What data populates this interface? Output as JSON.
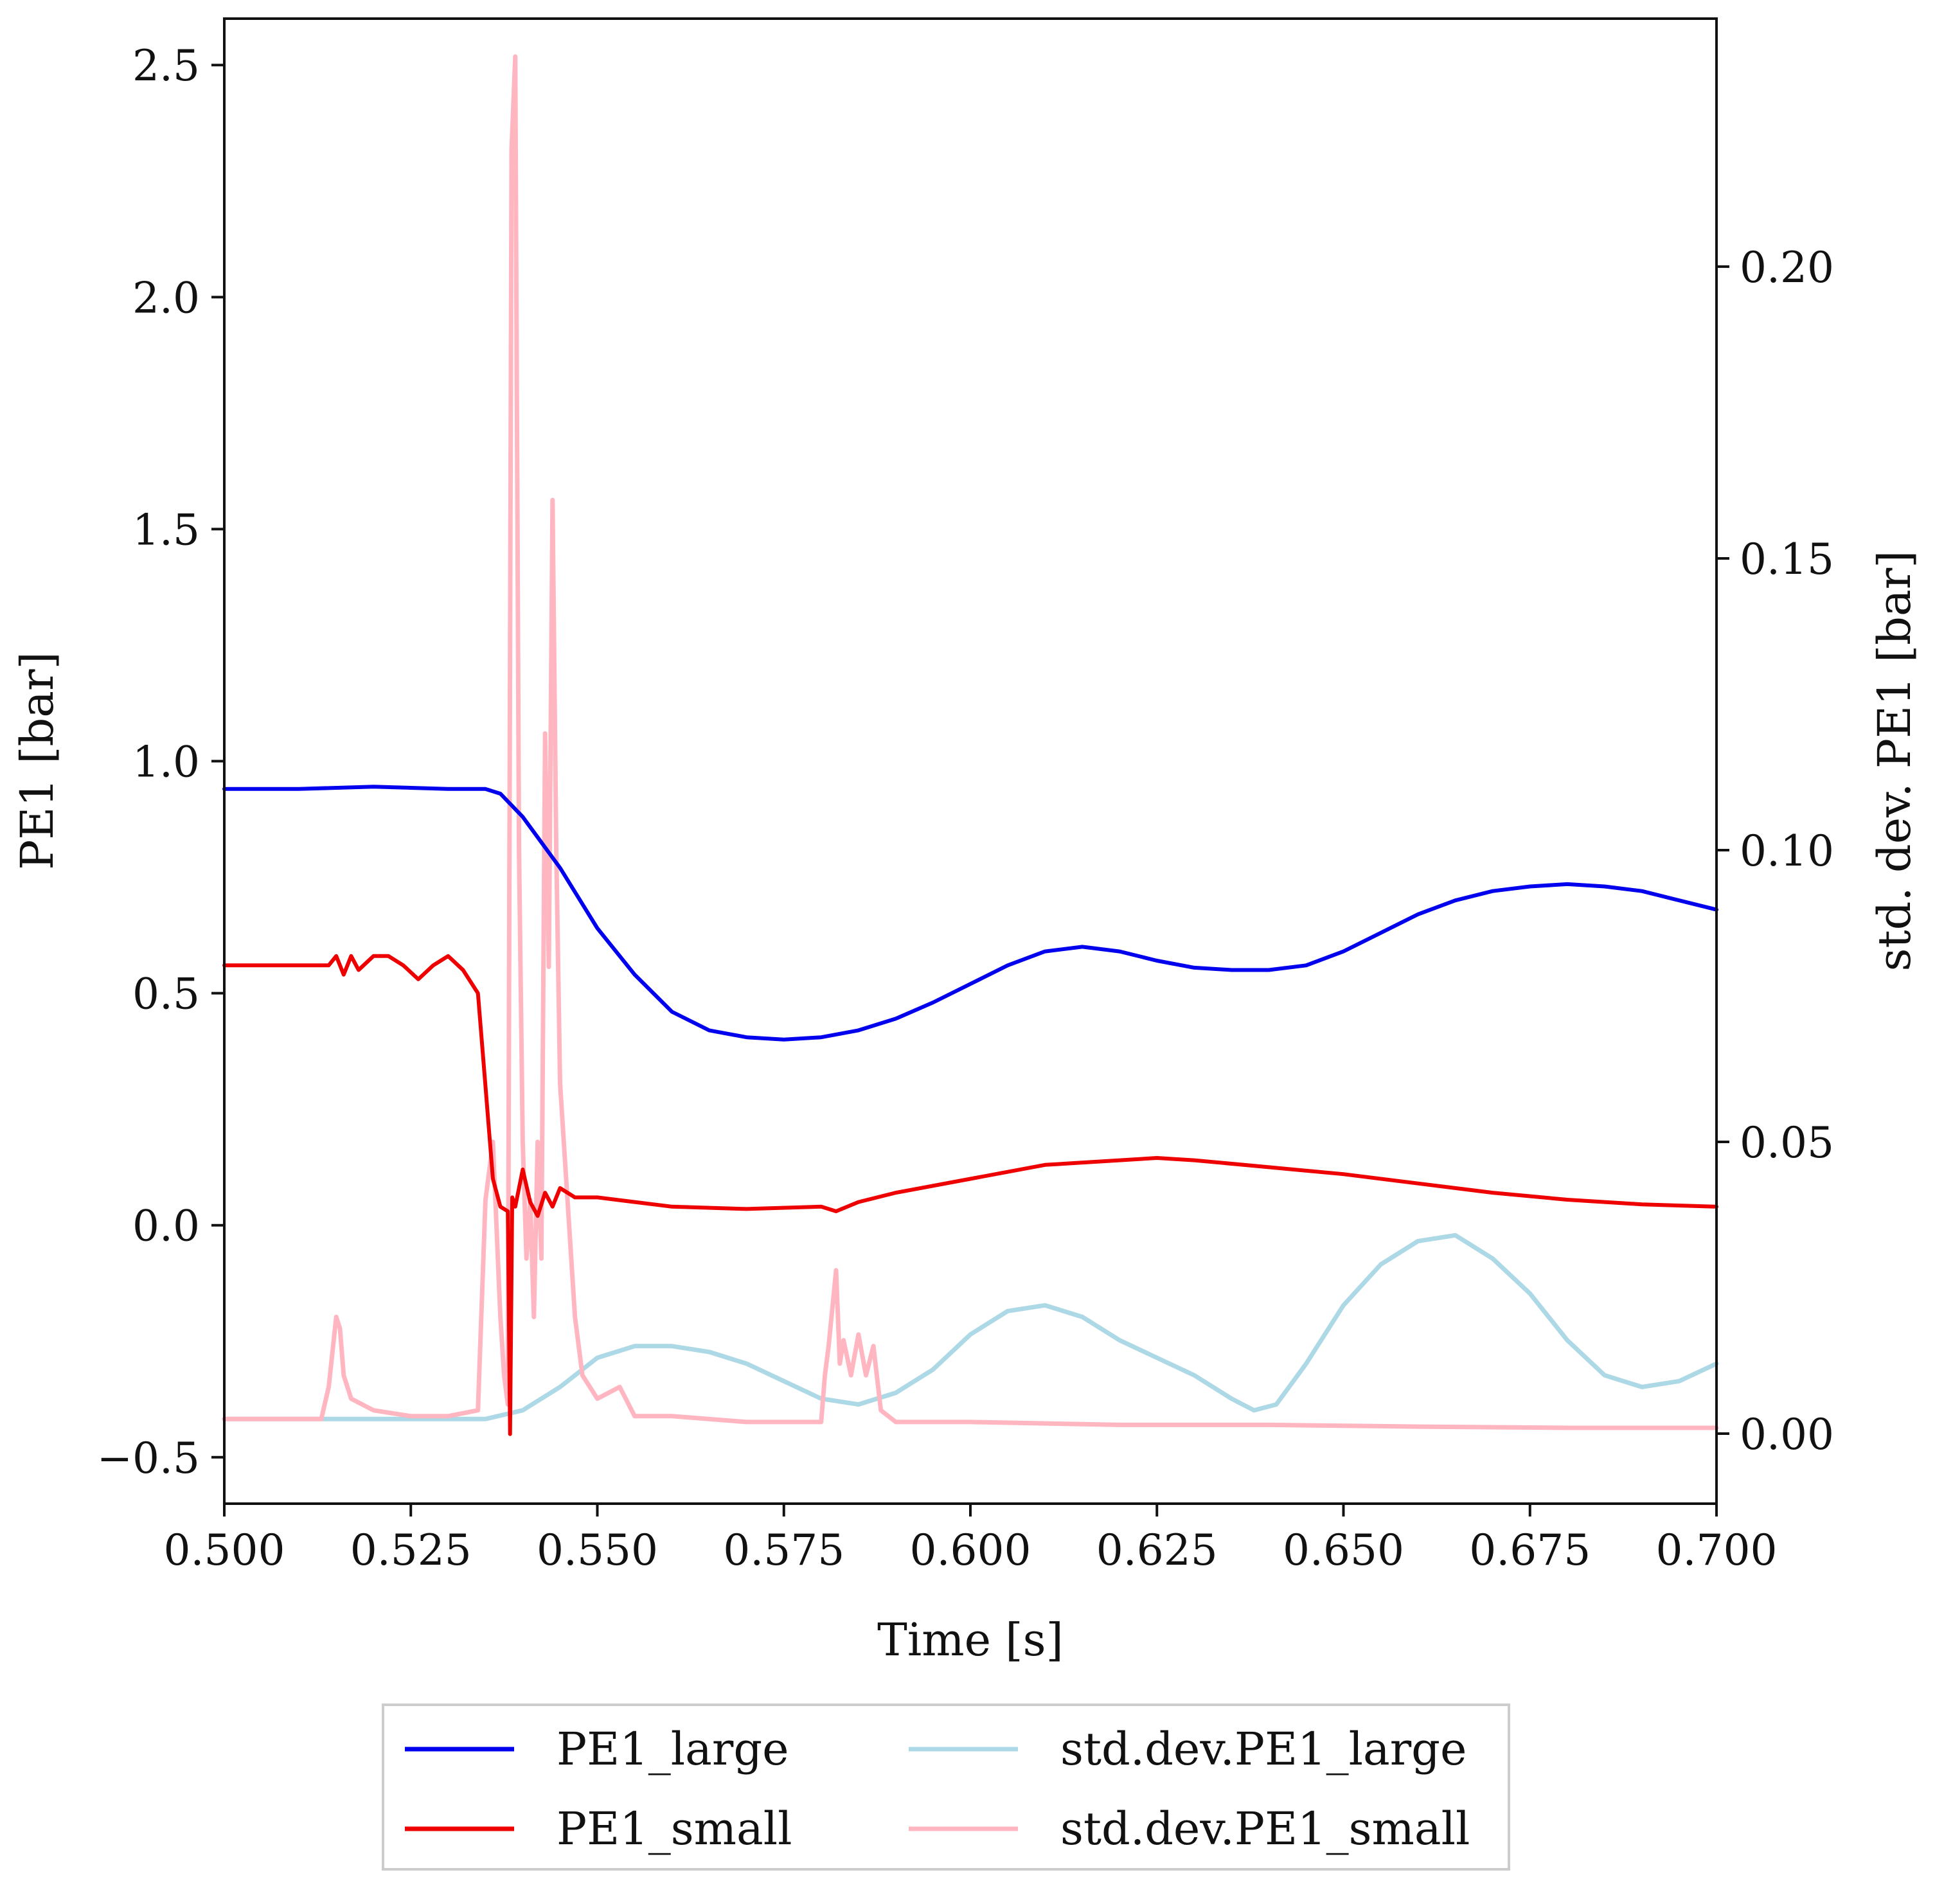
{
  "chart_data": {
    "type": "line",
    "xlabel": "Time [s]",
    "ylabel": "PE1 [bar]",
    "y2label": "std. dev. PE1 [bar]",
    "xlim": [
      0.5,
      0.7
    ],
    "ylim": [
      -0.6,
      2.6
    ],
    "y2lim": [
      -0.012,
      0.2425
    ],
    "grid": false,
    "legend_position": "bottom-center",
    "x_ticks": [
      0.5,
      0.525,
      0.55,
      0.575,
      0.6,
      0.625,
      0.65,
      0.675,
      0.7
    ],
    "x_tick_labels": [
      "0.500",
      "0.525",
      "0.550",
      "0.575",
      "0.600",
      "0.625",
      "0.650",
      "0.675",
      "0.700"
    ],
    "y_ticks": [
      -0.5,
      0.0,
      0.5,
      1.0,
      1.5,
      2.0,
      2.5
    ],
    "y_tick_labels": [
      "−0.5",
      "0.0",
      "0.5",
      "1.0",
      "1.5",
      "2.0",
      "2.5"
    ],
    "y2_ticks": [
      0.0,
      0.05,
      0.1,
      0.15,
      0.2
    ],
    "y2_tick_labels": [
      "0.00",
      "0.05",
      "0.10",
      "0.15",
      "0.20"
    ],
    "series": [
      {
        "name": "PE1_large",
        "axis": "left",
        "color": "#0000ee",
        "x": [
          0.5,
          0.51,
          0.52,
          0.53,
          0.535,
          0.537,
          0.54,
          0.545,
          0.55,
          0.555,
          0.56,
          0.565,
          0.57,
          0.575,
          0.58,
          0.585,
          0.59,
          0.595,
          0.6,
          0.605,
          0.61,
          0.615,
          0.62,
          0.625,
          0.63,
          0.635,
          0.64,
          0.645,
          0.65,
          0.655,
          0.66,
          0.665,
          0.67,
          0.675,
          0.68,
          0.685,
          0.69,
          0.695,
          0.7
        ],
        "values": [
          0.94,
          0.94,
          0.945,
          0.94,
          0.94,
          0.93,
          0.88,
          0.77,
          0.64,
          0.54,
          0.46,
          0.42,
          0.405,
          0.4,
          0.405,
          0.42,
          0.445,
          0.48,
          0.52,
          0.56,
          0.59,
          0.6,
          0.59,
          0.57,
          0.555,
          0.55,
          0.55,
          0.56,
          0.59,
          0.63,
          0.67,
          0.7,
          0.72,
          0.73,
          0.735,
          0.73,
          0.72,
          0.7,
          0.68
        ]
      },
      {
        "name": "PE1_small",
        "axis": "left",
        "color": "#ee0000",
        "x": [
          0.5,
          0.514,
          0.515,
          0.516,
          0.517,
          0.518,
          0.52,
          0.522,
          0.524,
          0.526,
          0.528,
          0.53,
          0.532,
          0.534,
          0.535,
          0.536,
          0.537,
          0.538,
          0.5383,
          0.5386,
          0.539,
          0.54,
          0.541,
          0.542,
          0.543,
          0.544,
          0.545,
          0.547,
          0.55,
          0.555,
          0.56,
          0.57,
          0.58,
          0.582,
          0.585,
          0.59,
          0.6,
          0.61,
          0.62,
          0.625,
          0.63,
          0.64,
          0.65,
          0.66,
          0.67,
          0.68,
          0.69,
          0.7
        ],
        "values": [
          0.56,
          0.56,
          0.58,
          0.54,
          0.58,
          0.55,
          0.58,
          0.58,
          0.56,
          0.53,
          0.56,
          0.58,
          0.55,
          0.5,
          0.3,
          0.1,
          0.04,
          0.03,
          -0.45,
          0.06,
          0.04,
          0.12,
          0.05,
          0.02,
          0.07,
          0.04,
          0.08,
          0.06,
          0.06,
          0.05,
          0.04,
          0.035,
          0.04,
          0.03,
          0.05,
          0.07,
          0.1,
          0.13,
          0.14,
          0.145,
          0.14,
          0.125,
          0.11,
          0.09,
          0.07,
          0.055,
          0.045,
          0.04
        ]
      },
      {
        "name": "std.dev.PE1_large",
        "axis": "right",
        "color": "#add8e6",
        "x": [
          0.5,
          0.52,
          0.53,
          0.535,
          0.54,
          0.545,
          0.55,
          0.555,
          0.56,
          0.565,
          0.57,
          0.575,
          0.58,
          0.585,
          0.59,
          0.595,
          0.6,
          0.605,
          0.61,
          0.615,
          0.62,
          0.625,
          0.63,
          0.635,
          0.638,
          0.641,
          0.645,
          0.65,
          0.655,
          0.66,
          0.665,
          0.67,
          0.675,
          0.68,
          0.685,
          0.69,
          0.695,
          0.7
        ],
        "values": [
          0.0025,
          0.0025,
          0.0025,
          0.0025,
          0.004,
          0.008,
          0.013,
          0.015,
          0.015,
          0.014,
          0.012,
          0.009,
          0.006,
          0.005,
          0.007,
          0.011,
          0.017,
          0.021,
          0.022,
          0.02,
          0.016,
          0.013,
          0.01,
          0.006,
          0.004,
          0.005,
          0.012,
          0.022,
          0.029,
          0.033,
          0.034,
          0.03,
          0.024,
          0.016,
          0.01,
          0.008,
          0.009,
          0.012
        ]
      },
      {
        "name": "std.dev.PE1_small",
        "axis": "right",
        "color": "#ffb6c1",
        "x": [
          0.5,
          0.513,
          0.514,
          0.515,
          0.5155,
          0.516,
          0.517,
          0.52,
          0.525,
          0.53,
          0.534,
          0.535,
          0.536,
          0.537,
          0.5375,
          0.538,
          0.5385,
          0.539,
          0.5395,
          0.54,
          0.5405,
          0.541,
          0.5415,
          0.542,
          0.5425,
          0.543,
          0.5435,
          0.544,
          0.5445,
          0.545,
          0.546,
          0.547,
          0.548,
          0.55,
          0.553,
          0.555,
          0.56,
          0.57,
          0.58,
          0.5805,
          0.581,
          0.582,
          0.5825,
          0.583,
          0.584,
          0.585,
          0.586,
          0.587,
          0.588,
          0.59,
          0.6,
          0.62,
          0.64,
          0.66,
          0.68,
          0.7
        ],
        "values": [
          0.0025,
          0.0025,
          0.008,
          0.02,
          0.018,
          0.01,
          0.006,
          0.004,
          0.003,
          0.003,
          0.004,
          0.04,
          0.05,
          0.02,
          0.01,
          0.005,
          0.22,
          0.236,
          0.1,
          0.05,
          0.03,
          0.04,
          0.02,
          0.05,
          0.03,
          0.12,
          0.08,
          0.16,
          0.1,
          0.06,
          0.04,
          0.02,
          0.01,
          0.006,
          0.008,
          0.003,
          0.003,
          0.002,
          0.002,
          0.01,
          0.015,
          0.028,
          0.012,
          0.016,
          0.01,
          0.017,
          0.01,
          0.015,
          0.004,
          0.002,
          0.002,
          0.0015,
          0.0015,
          0.0012,
          0.001,
          0.001
        ]
      }
    ]
  }
}
